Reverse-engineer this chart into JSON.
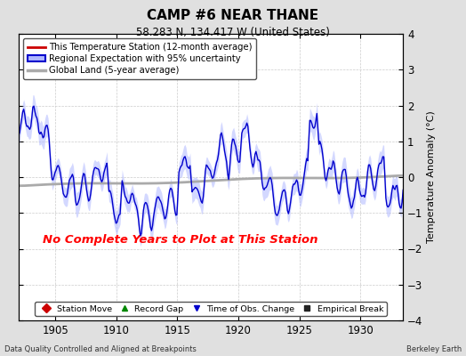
{
  "title": "CAMP #6 NEAR THANE",
  "subtitle": "58.283 N, 134.417 W (United States)",
  "ylabel": "Temperature Anomaly (°C)",
  "xlabel_bottom_left": "Data Quality Controlled and Aligned at Breakpoints",
  "xlabel_bottom_right": "Berkeley Earth",
  "no_data_text": "No Complete Years to Plot at This Station",
  "xlim": [
    1902.0,
    1933.5
  ],
  "ylim": [
    -4,
    4
  ],
  "yticks": [
    -4,
    -3,
    -2,
    -1,
    0,
    1,
    2,
    3,
    4
  ],
  "xticks": [
    1905,
    1910,
    1915,
    1920,
    1925,
    1930
  ],
  "bg_color": "#e0e0e0",
  "plot_bg_color": "#ffffff",
  "regional_line_color": "#0000cc",
  "regional_fill_color": "#b0b8ff",
  "station_line_color": "#cc0000",
  "global_line_color": "#aaaaaa",
  "legend1_items": [
    {
      "label": "This Temperature Station (12-month average)",
      "color": "#cc0000",
      "lw": 2
    },
    {
      "label": "Regional Expectation with 95% uncertainty",
      "line_color": "#0000cc",
      "fill_color": "#b0b8ff",
      "lw": 2
    },
    {
      "label": "Global Land (5-year average)",
      "color": "#aaaaaa",
      "lw": 2
    }
  ],
  "legend2_items": [
    {
      "label": "Station Move",
      "marker": "D",
      "color": "#cc0000"
    },
    {
      "label": "Record Gap",
      "marker": "^",
      "color": "#008800"
    },
    {
      "label": "Time of Obs. Change",
      "marker": "v",
      "color": "#0000cc"
    },
    {
      "label": "Empirical Break",
      "marker": "s",
      "color": "#222222"
    }
  ],
  "seed": 12345,
  "x_start": 1902.0,
  "x_end": 1933.5,
  "n_points": 380
}
